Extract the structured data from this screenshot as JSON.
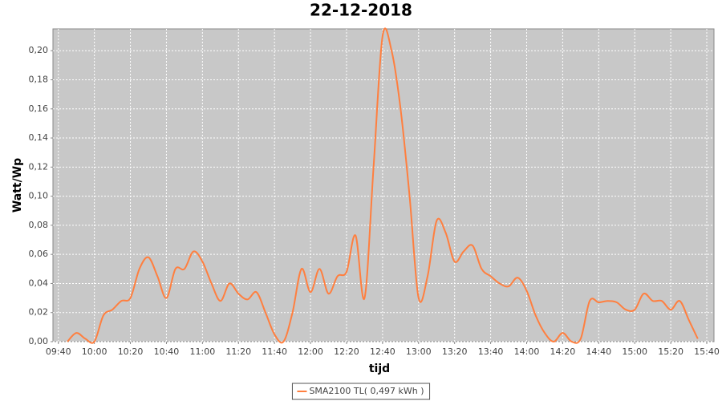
{
  "chart_data": {
    "type": "line",
    "title": "22-12-2018",
    "x_label": "tijd",
    "y_label": "Watt/Wp",
    "x": [
      "09:45",
      "09:50",
      "09:55",
      "10:00",
      "10:05",
      "10:10",
      "10:15",
      "10:20",
      "10:25",
      "10:30",
      "10:35",
      "10:40",
      "10:45",
      "10:50",
      "10:55",
      "11:00",
      "11:05",
      "11:10",
      "11:15",
      "11:20",
      "11:25",
      "11:30",
      "11:35",
      "11:40",
      "11:45",
      "11:50",
      "11:55",
      "12:00",
      "12:05",
      "12:10",
      "12:15",
      "12:20",
      "12:25",
      "12:30",
      "12:35",
      "12:40",
      "12:45",
      "12:50",
      "12:55",
      "13:00",
      "13:05",
      "13:10",
      "13:15",
      "13:20",
      "13:25",
      "13:30",
      "13:35",
      "13:40",
      "13:45",
      "13:50",
      "13:55",
      "14:00",
      "14:05",
      "14:10",
      "14:15",
      "14:20",
      "14:25",
      "14:30",
      "14:35",
      "14:40",
      "14:45",
      "14:50",
      "14:55",
      "15:00",
      "15:05",
      "15:10",
      "15:15",
      "15:20",
      "15:25",
      "15:30",
      "15:35"
    ],
    "series": [
      {
        "name": "SMA2100 TL( 0,497 kWh )",
        "color": "#ff7f3f",
        "values": [
          0.0,
          0.006,
          0.002,
          0.0,
          0.018,
          0.022,
          0.028,
          0.03,
          0.05,
          0.058,
          0.045,
          0.03,
          0.05,
          0.05,
          0.062,
          0.055,
          0.04,
          0.028,
          0.04,
          0.033,
          0.029,
          0.034,
          0.02,
          0.005,
          0.0,
          0.02,
          0.05,
          0.034,
          0.05,
          0.033,
          0.045,
          0.048,
          0.073,
          0.03,
          0.12,
          0.21,
          0.2,
          0.16,
          0.1,
          0.03,
          0.045,
          0.083,
          0.075,
          0.055,
          0.062,
          0.066,
          0.05,
          0.045,
          0.04,
          0.038,
          0.044,
          0.035,
          0.018,
          0.006,
          0.0,
          0.006,
          0.0,
          0.002,
          0.028,
          0.027,
          0.028,
          0.027,
          0.022,
          0.022,
          0.033,
          0.028,
          0.028,
          0.022,
          0.028,
          0.015,
          0.002
        ]
      }
    ],
    "xlim": [
      "09:37",
      "15:44"
    ],
    "xticks": [
      "09:40",
      "10:00",
      "10:20",
      "10:40",
      "11:00",
      "11:20",
      "11:40",
      "12:00",
      "12:20",
      "12:40",
      "13:00",
      "13:20",
      "13:40",
      "14:00",
      "14:20",
      "14:40",
      "15:00",
      "15:20",
      "15:40"
    ],
    "ylim": [
      0,
      0.215
    ],
    "yticks": [
      {
        "value": 0,
        "label": "0,00"
      },
      {
        "value": 0.02,
        "label": "0,02"
      },
      {
        "value": 0.04,
        "label": "0,04"
      },
      {
        "value": 0.06,
        "label": "0,06"
      },
      {
        "value": 0.08,
        "label": "0,08"
      },
      {
        "value": 0.1,
        "label": "0,10"
      },
      {
        "value": 0.12,
        "label": "0,12"
      },
      {
        "value": 0.14,
        "label": "0,14"
      },
      {
        "value": 0.16,
        "label": "0,16"
      },
      {
        "value": 0.18,
        "label": "0,18"
      },
      {
        "value": 0.2,
        "label": "0,20"
      }
    ],
    "grid": true,
    "legend": "bottom"
  }
}
